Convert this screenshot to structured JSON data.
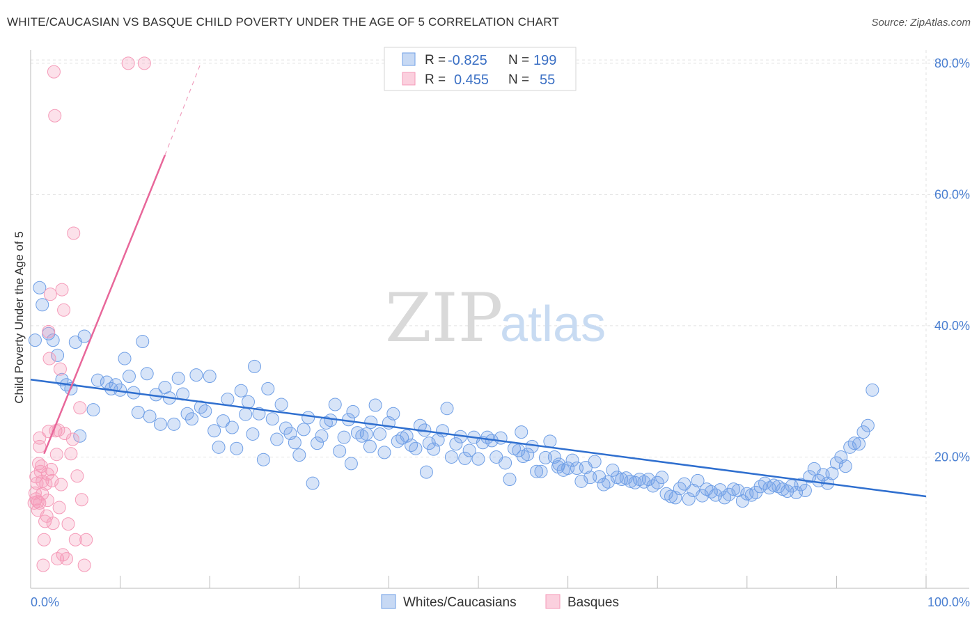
{
  "header": {
    "title": "WHITE/CAUCASIAN VS BASQUE CHILD POVERTY UNDER THE AGE OF 5 CORRELATION CHART",
    "source": "Source: ZipAtlas.com"
  },
  "watermark": {
    "zip": "ZIP",
    "atlas": "atlas"
  },
  "legend": {
    "rows": [
      {
        "r_label": "R =",
        "r_value": "-0.825",
        "n_label": "N =",
        "n_value": "199",
        "color": "#6f9fe6"
      },
      {
        "r_label": "R =",
        "r_value": "0.455",
        "n_label": "N =",
        "n_value": "55",
        "color": "#f59ab8"
      }
    ]
  },
  "chart_data": {
    "type": "scatter",
    "ylabel": "Child Poverty Under the Age of 5",
    "xlim": [
      0,
      100
    ],
    "ylim": [
      0,
      82
    ],
    "x_tick_labels": [
      {
        "value": 0,
        "label": "0.0%"
      },
      {
        "value": 100,
        "label": "100.0%"
      }
    ],
    "y_tick_labels": [
      {
        "value": 20,
        "label": "20.0%"
      },
      {
        "value": 40,
        "label": "40.0%"
      },
      {
        "value": 60,
        "label": "60.0%"
      },
      {
        "value": 80,
        "label": "80.0%"
      }
    ],
    "grid": true,
    "legend_position": "top-center",
    "series": [
      {
        "name": "Whites/Caucasians",
        "color": "#6f9fe6",
        "trend": {
          "x": [
            0,
            100
          ],
          "y": [
            31.8,
            14.0
          ]
        },
        "points": [
          [
            0.5,
            37.8
          ],
          [
            1.0,
            45.8
          ],
          [
            1.3,
            43.2
          ],
          [
            2.0,
            38.8
          ],
          [
            2.5,
            37.8
          ],
          [
            3.0,
            35.5
          ],
          [
            3.5,
            31.8
          ],
          [
            4.0,
            31.0
          ],
          [
            4.5,
            30.4
          ],
          [
            5.0,
            37.5
          ],
          [
            5.5,
            23.2
          ],
          [
            6.0,
            38.4
          ],
          [
            7.0,
            27.2
          ],
          [
            7.5,
            31.7
          ],
          [
            8.5,
            31.4
          ],
          [
            9.0,
            30.4
          ],
          [
            9.5,
            31.0
          ],
          [
            10.0,
            30.2
          ],
          [
            10.5,
            35.0
          ],
          [
            11.0,
            32.3
          ],
          [
            11.5,
            29.8
          ],
          [
            12.0,
            26.8
          ],
          [
            12.5,
            37.6
          ],
          [
            13.0,
            32.7
          ],
          [
            13.3,
            26.2
          ],
          [
            14.0,
            29.5
          ],
          [
            14.5,
            25.0
          ],
          [
            15.0,
            30.6
          ],
          [
            15.5,
            29.0
          ],
          [
            16.0,
            25.0
          ],
          [
            16.5,
            32.0
          ],
          [
            17.0,
            29.6
          ],
          [
            17.5,
            26.6
          ],
          [
            18.0,
            25.8
          ],
          [
            18.5,
            32.5
          ],
          [
            19.0,
            27.6
          ],
          [
            19.5,
            27.0
          ],
          [
            20.0,
            32.3
          ],
          [
            20.5,
            24.0
          ],
          [
            21.0,
            21.5
          ],
          [
            21.5,
            25.5
          ],
          [
            22.0,
            28.8
          ],
          [
            22.5,
            24.5
          ],
          [
            23.0,
            21.3
          ],
          [
            23.5,
            30.1
          ],
          [
            24.0,
            26.5
          ],
          [
            24.3,
            28.4
          ],
          [
            25.0,
            33.8
          ],
          [
            25.5,
            26.6
          ],
          [
            26.0,
            19.6
          ],
          [
            26.5,
            30.4
          ],
          [
            27.0,
            25.8
          ],
          [
            27.5,
            22.7
          ],
          [
            28.0,
            28.0
          ],
          [
            28.5,
            24.4
          ],
          [
            29.0,
            23.6
          ],
          [
            29.5,
            22.2
          ],
          [
            30.0,
            20.3
          ],
          [
            30.5,
            24.2
          ],
          [
            31.0,
            26.0
          ],
          [
            31.5,
            16.0
          ],
          [
            32.0,
            22.1
          ],
          [
            32.5,
            23.2
          ],
          [
            33.0,
            25.2
          ],
          [
            33.5,
            25.6
          ],
          [
            34.0,
            28.0
          ],
          [
            34.5,
            20.9
          ],
          [
            35.0,
            23.0
          ],
          [
            35.5,
            25.7
          ],
          [
            36.0,
            26.9
          ],
          [
            36.5,
            23.7
          ],
          [
            37.0,
            23.2
          ],
          [
            37.5,
            23.5
          ],
          [
            38.0,
            25.3
          ],
          [
            38.5,
            27.9
          ],
          [
            39.0,
            23.5
          ],
          [
            39.5,
            20.7
          ],
          [
            40.0,
            25.2
          ],
          [
            40.5,
            26.6
          ],
          [
            41.0,
            22.4
          ],
          [
            41.5,
            22.9
          ],
          [
            42.0,
            23.2
          ],
          [
            42.5,
            21.8
          ],
          [
            43.0,
            21.3
          ],
          [
            43.5,
            24.8
          ],
          [
            44.0,
            24.1
          ],
          [
            44.5,
            22.1
          ],
          [
            45.0,
            21.2
          ],
          [
            45.5,
            22.6
          ],
          [
            46.0,
            24.0
          ],
          [
            46.5,
            27.4
          ],
          [
            47.0,
            20.0
          ],
          [
            47.5,
            22.0
          ],
          [
            48.0,
            23.1
          ],
          [
            48.5,
            19.8
          ],
          [
            49.0,
            21.0
          ],
          [
            49.5,
            23.0
          ],
          [
            50.0,
            19.7
          ],
          [
            50.5,
            22.2
          ],
          [
            51.0,
            23.0
          ],
          [
            51.5,
            22.5
          ],
          [
            52.0,
            20.0
          ],
          [
            52.5,
            22.9
          ],
          [
            53.0,
            19.1
          ],
          [
            53.5,
            16.6
          ],
          [
            54.0,
            21.3
          ],
          [
            54.5,
            21.0
          ],
          [
            55.0,
            20.1
          ],
          [
            55.5,
            20.4
          ],
          [
            56.0,
            21.6
          ],
          [
            56.5,
            17.8
          ],
          [
            57.0,
            17.8
          ],
          [
            57.5,
            19.9
          ],
          [
            58.0,
            22.4
          ],
          [
            58.5,
            20.0
          ],
          [
            59.0,
            18.9
          ],
          [
            59.5,
            18.0
          ],
          [
            60.0,
            18.3
          ],
          [
            60.5,
            19.5
          ],
          [
            61.0,
            18.3
          ],
          [
            61.5,
            16.3
          ],
          [
            62.0,
            18.4
          ],
          [
            62.5,
            16.9
          ],
          [
            63.0,
            19.3
          ],
          [
            63.5,
            17.0
          ],
          [
            64.0,
            15.8
          ],
          [
            64.5,
            16.2
          ],
          [
            65.0,
            18.0
          ],
          [
            65.5,
            16.9
          ],
          [
            66.0,
            16.6
          ],
          [
            66.5,
            16.8
          ],
          [
            67.0,
            16.3
          ],
          [
            67.5,
            16.1
          ],
          [
            68.0,
            16.6
          ],
          [
            68.5,
            16.2
          ],
          [
            69.0,
            16.6
          ],
          [
            69.5,
            15.6
          ],
          [
            70.0,
            16.1
          ],
          [
            70.5,
            16.9
          ],
          [
            71.0,
            14.4
          ],
          [
            71.5,
            14.0
          ],
          [
            72.0,
            13.8
          ],
          [
            72.5,
            15.2
          ],
          [
            73.0,
            15.9
          ],
          [
            73.5,
            13.6
          ],
          [
            74.0,
            14.9
          ],
          [
            74.5,
            16.4
          ],
          [
            75.0,
            14.1
          ],
          [
            75.5,
            15.1
          ],
          [
            76.0,
            14.7
          ],
          [
            76.5,
            14.2
          ],
          [
            77.0,
            15.0
          ],
          [
            77.5,
            13.8
          ],
          [
            78.0,
            14.3
          ],
          [
            78.5,
            15.1
          ],
          [
            79.0,
            14.9
          ],
          [
            79.5,
            13.3
          ],
          [
            80.0,
            14.4
          ],
          [
            80.5,
            14.2
          ],
          [
            81.0,
            14.6
          ],
          [
            81.5,
            15.5
          ],
          [
            82.0,
            16.0
          ],
          [
            82.5,
            15.3
          ],
          [
            83.0,
            15.7
          ],
          [
            83.5,
            15.5
          ],
          [
            84.0,
            15.1
          ],
          [
            84.5,
            14.8
          ],
          [
            85.0,
            15.6
          ],
          [
            85.5,
            14.6
          ],
          [
            86.0,
            15.8
          ],
          [
            86.5,
            14.9
          ],
          [
            87.0,
            17.0
          ],
          [
            87.5,
            18.2
          ],
          [
            88.0,
            16.4
          ],
          [
            88.5,
            17.3
          ],
          [
            89.0,
            16.0
          ],
          [
            89.5,
            17.5
          ],
          [
            90.0,
            19.1
          ],
          [
            90.5,
            20.0
          ],
          [
            91.0,
            18.6
          ],
          [
            91.5,
            21.5
          ],
          [
            92.0,
            22.1
          ],
          [
            92.5,
            22.0
          ],
          [
            93.0,
            23.8
          ],
          [
            93.5,
            24.8
          ],
          [
            94.0,
            30.2
          ],
          [
            54.8,
            23.8
          ],
          [
            35.8,
            19.0
          ],
          [
            44.2,
            17.7
          ],
          [
            58.9,
            18.5
          ],
          [
            24.8,
            23.5
          ],
          [
            37.9,
            21.6
          ]
        ]
      },
      {
        "name": "Basques",
        "color": "#f59ab8",
        "trend": {
          "x": [
            1.5,
            15.0
          ],
          "y": [
            20.5,
            66.0
          ],
          "dashed_to": {
            "x": 19.0,
            "y": 80.0
          }
        },
        "points": [
          [
            0.4,
            13.0
          ],
          [
            0.5,
            14.5
          ],
          [
            0.6,
            13.6
          ],
          [
            0.7,
            16.0
          ],
          [
            0.8,
            13.2
          ],
          [
            0.9,
            19.0
          ],
          [
            1.0,
            22.9
          ],
          [
            1.0,
            21.6
          ],
          [
            1.1,
            17.8
          ],
          [
            1.2,
            18.6
          ],
          [
            1.3,
            16.3
          ],
          [
            1.4,
            3.5
          ],
          [
            1.5,
            7.4
          ],
          [
            1.6,
            10.2
          ],
          [
            1.7,
            15.9
          ],
          [
            1.8,
            11.0
          ],
          [
            1.9,
            17.4
          ],
          [
            2.0,
            23.9
          ],
          [
            2.0,
            39.1
          ],
          [
            2.1,
            35.0
          ],
          [
            2.2,
            44.8
          ],
          [
            2.3,
            18.1
          ],
          [
            2.4,
            16.4
          ],
          [
            2.5,
            9.9
          ],
          [
            2.6,
            78.7
          ],
          [
            2.7,
            72.0
          ],
          [
            2.8,
            24.0
          ],
          [
            2.9,
            20.4
          ],
          [
            3.0,
            4.5
          ],
          [
            3.1,
            24.1
          ],
          [
            3.2,
            12.3
          ],
          [
            3.3,
            33.4
          ],
          [
            3.4,
            15.8
          ],
          [
            3.5,
            45.5
          ],
          [
            3.6,
            5.1
          ],
          [
            3.7,
            42.4
          ],
          [
            3.8,
            23.6
          ],
          [
            4.0,
            4.5
          ],
          [
            4.2,
            9.8
          ],
          [
            4.5,
            20.5
          ],
          [
            4.7,
            22.7
          ],
          [
            4.8,
            54.1
          ],
          [
            5.0,
            7.4
          ],
          [
            5.2,
            17.1
          ],
          [
            5.5,
            27.5
          ],
          [
            5.7,
            13.5
          ],
          [
            6.0,
            3.5
          ],
          [
            6.2,
            7.4
          ],
          [
            10.9,
            80.0
          ],
          [
            12.7,
            80.0
          ],
          [
            1.0,
            13.0
          ],
          [
            0.8,
            11.9
          ],
          [
            1.9,
            13.4
          ],
          [
            0.6,
            17.0
          ],
          [
            1.3,
            14.4
          ]
        ]
      }
    ]
  }
}
